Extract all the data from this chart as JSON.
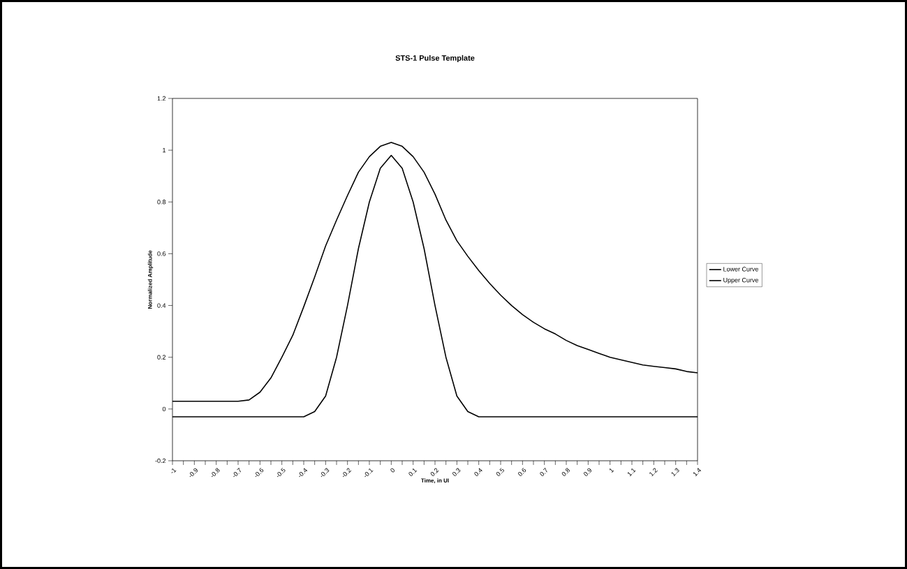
{
  "chart_data": {
    "type": "line",
    "title": "STS-1 Pulse Template",
    "xlabel": "Time, in UI",
    "ylabel": "Normalized Amplitude",
    "x": [
      -1,
      -0.95,
      -0.9,
      -0.85,
      -0.8,
      -0.75,
      -0.7,
      -0.65,
      -0.6,
      -0.55,
      -0.5,
      -0.45,
      -0.4,
      -0.35,
      -0.3,
      -0.25,
      -0.2,
      -0.15,
      -0.1,
      -0.05,
      0,
      0.05,
      0.1,
      0.15,
      0.2,
      0.25,
      0.3,
      0.35,
      0.4,
      0.45,
      0.5,
      0.55,
      0.6,
      0.65,
      0.7,
      0.75,
      0.8,
      0.85,
      0.9,
      0.95,
      1,
      1.05,
      1.1,
      1.15,
      1.2,
      1.25,
      1.3,
      1.35,
      1.4
    ],
    "series": [
      {
        "name": "Lower Curve",
        "color": "#000000",
        "values": [
          -0.03,
          -0.03,
          -0.03,
          -0.03,
          -0.03,
          -0.03,
          -0.03,
          -0.03,
          -0.03,
          -0.03,
          -0.03,
          -0.03,
          -0.03,
          -0.01,
          0.05,
          0.2,
          0.4,
          0.62,
          0.8,
          0.93,
          0.98,
          0.93,
          0.8,
          0.62,
          0.4,
          0.2,
          0.05,
          -0.01,
          -0.03,
          -0.03,
          -0.03,
          -0.03,
          -0.03,
          -0.03,
          -0.03,
          -0.03,
          -0.03,
          -0.03,
          -0.03,
          -0.03,
          -0.03,
          -0.03,
          -0.03,
          -0.03,
          -0.03,
          -0.03,
          -0.03,
          -0.03,
          -0.03
        ]
      },
      {
        "name": "Upper Curve",
        "color": "#000000",
        "values": [
          0.03,
          0.03,
          0.03,
          0.03,
          0.03,
          0.03,
          0.03,
          0.035,
          0.065,
          0.12,
          0.2,
          0.285,
          0.395,
          0.51,
          0.63,
          0.73,
          0.825,
          0.915,
          0.975,
          1.015,
          1.03,
          1.015,
          0.975,
          0.915,
          0.83,
          0.73,
          0.65,
          0.59,
          0.535,
          0.485,
          0.44,
          0.4,
          0.365,
          0.335,
          0.31,
          0.29,
          0.265,
          0.245,
          0.23,
          0.215,
          0.2,
          0.19,
          0.18,
          0.17,
          0.165,
          0.16,
          0.155,
          0.145,
          0.14
        ]
      }
    ],
    "xlim": [
      -1,
      1.4
    ],
    "xticks": [
      -1,
      {
        "value": -0.95,
        "label": null
      },
      -0.9,
      {
        "value": -0.85,
        "label": null
      },
      -0.8,
      {
        "value": -0.75,
        "label": null
      },
      -0.7,
      {
        "value": -0.65,
        "label": null
      },
      -0.6,
      {
        "value": -0.55,
        "label": null
      },
      -0.5,
      {
        "value": -0.45,
        "label": null
      },
      -0.4,
      {
        "value": -0.35,
        "label": null
      },
      -0.3,
      {
        "value": -0.25,
        "label": null
      },
      -0.2,
      {
        "value": -0.15,
        "label": null
      },
      -0.1,
      {
        "value": -0.05,
        "label": null
      },
      0,
      {
        "value": 0.05,
        "label": null
      },
      0.1,
      {
        "value": 0.15,
        "label": null
      },
      0.2,
      {
        "value": 0.25,
        "label": null
      },
      0.3,
      {
        "value": 0.35,
        "label": null
      },
      0.4,
      {
        "value": 0.45,
        "label": null
      },
      0.5,
      {
        "value": 0.55,
        "label": null
      },
      0.6,
      {
        "value": 0.65,
        "label": null
      },
      0.7,
      {
        "value": 0.75,
        "label": null
      },
      0.8,
      {
        "value": 0.85,
        "label": null
      },
      0.9,
      {
        "value": 0.95,
        "label": null
      },
      1,
      {
        "value": 1.05,
        "label": null
      },
      1.1,
      {
        "value": 1.15,
        "label": null
      },
      1.2,
      {
        "value": 1.25,
        "label": null
      },
      1.3,
      {
        "value": 1.35,
        "label": null
      },
      1.4
    ],
    "ylim": [
      -0.2,
      1.2
    ],
    "yticks": [
      -0.2,
      0,
      0.2,
      0.4,
      0.6,
      0.8,
      1,
      1.2
    ],
    "grid": false,
    "legend": "right",
    "marker": "none",
    "line_style": "solid"
  }
}
